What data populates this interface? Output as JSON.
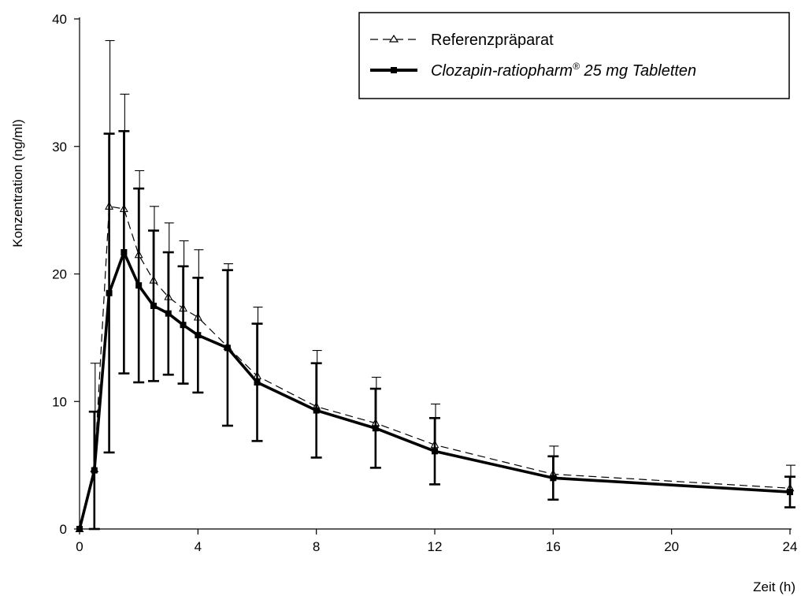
{
  "chart_data": {
    "type": "line",
    "xlabel": "Zeit (h)",
    "ylabel": "Konzentration (ng/ml)",
    "xlim": [
      0,
      24
    ],
    "ylim": [
      0,
      40
    ],
    "x_ticks": [
      0,
      4,
      8,
      12,
      16,
      20,
      24
    ],
    "y_ticks": [
      0,
      10,
      20,
      30,
      40
    ],
    "grid": false,
    "legend_position": "top-right",
    "series": [
      {
        "name": "Referenzpräparat",
        "style": "dashed",
        "marker": "open-triangle",
        "color": "#000000",
        "x": [
          0,
          0.5,
          1,
          1.5,
          2,
          2.5,
          3,
          3.5,
          4,
          5,
          6,
          8,
          10,
          12,
          16,
          24
        ],
        "y": [
          0,
          4.7,
          25.3,
          25.1,
          21.5,
          19.5,
          18.2,
          17.3,
          16.6,
          14.3,
          12.0,
          9.6,
          8.3,
          6.6,
          4.3,
          3.2
        ],
        "error": [
          0,
          8.3,
          13.0,
          9.0,
          6.6,
          5.8,
          5.8,
          5.3,
          5.3,
          6.5,
          5.4,
          4.4,
          3.6,
          3.2,
          2.2,
          1.8
        ]
      },
      {
        "name_main": "Clozapin-ratiopharm",
        "name_sup": "®",
        "name_rest": " 25 mg Tabletten",
        "style": "solid",
        "marker": "filled-square",
        "color": "#000000",
        "x": [
          0,
          0.5,
          1,
          1.5,
          2,
          2.5,
          3,
          3.5,
          4,
          5,
          6,
          8,
          10,
          12,
          16,
          24
        ],
        "y": [
          0,
          4.6,
          18.5,
          21.7,
          19.1,
          17.5,
          16.9,
          16.0,
          15.2,
          14.2,
          11.5,
          9.3,
          7.9,
          6.1,
          4.0,
          2.9
        ],
        "error": [
          0,
          4.6,
          12.5,
          9.5,
          7.6,
          5.9,
          4.8,
          4.6,
          4.5,
          6.1,
          4.6,
          3.7,
          3.1,
          2.6,
          1.7,
          1.2
        ]
      }
    ]
  }
}
